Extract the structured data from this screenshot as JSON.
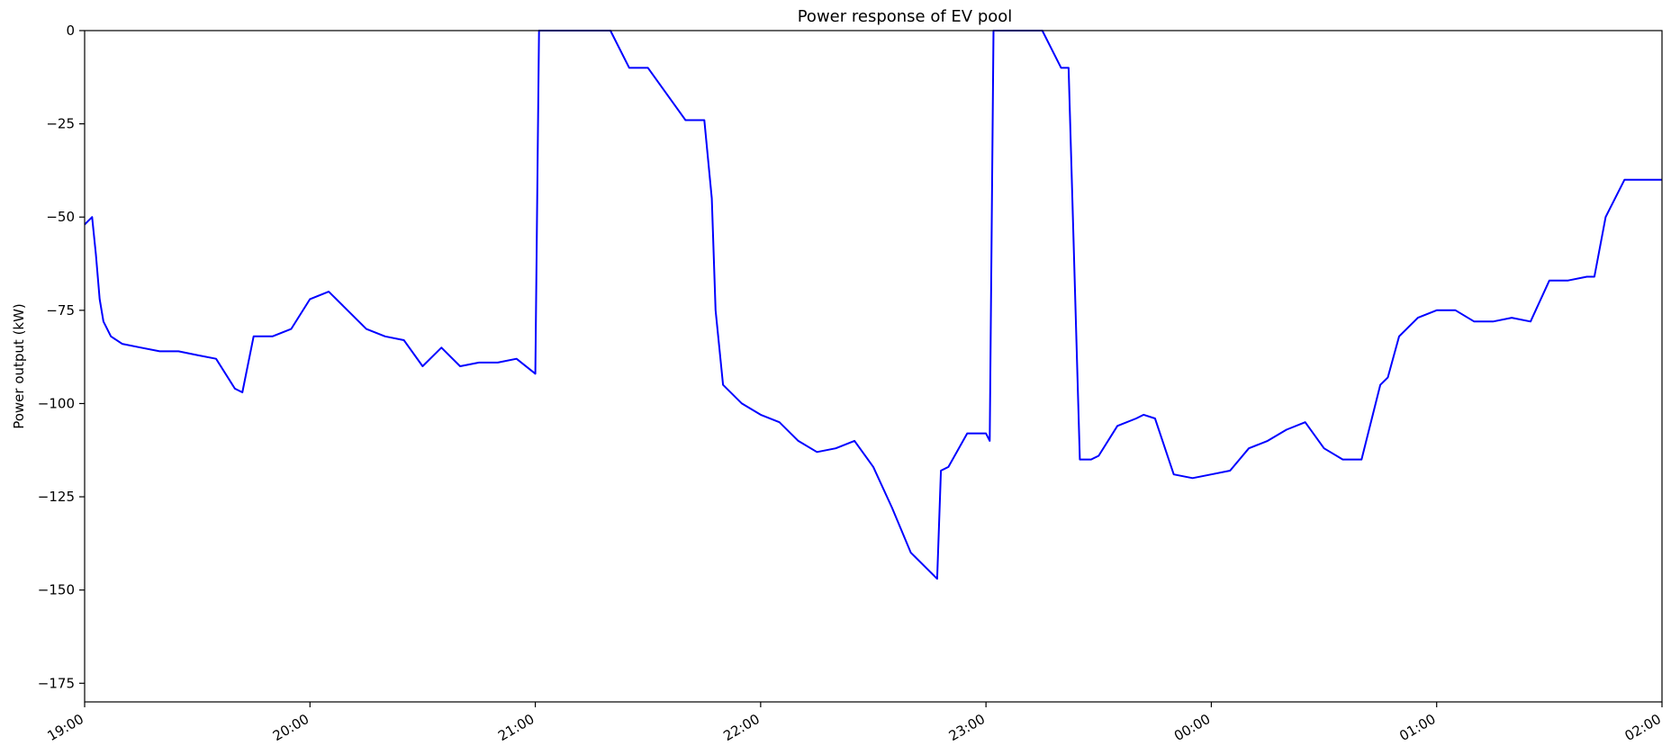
{
  "chart_data": {
    "type": "line",
    "title": "Power response of EV pool",
    "xlabel": "",
    "ylabel": "Power output (kW)",
    "line_color": "#0000ff",
    "grid": false,
    "xlim": [
      "19:00",
      "02:00"
    ],
    "ylim": [
      -180,
      0
    ],
    "x_ticks": [
      "19:00",
      "20:00",
      "21:00",
      "22:00",
      "23:00",
      "00:00",
      "01:00",
      "02:00"
    ],
    "y_ticks": [
      0,
      -25,
      -50,
      -75,
      -100,
      -125,
      -150,
      -175
    ],
    "series": [
      {
        "x": [
          "19:00",
          "19:02",
          "19:03",
          "19:04",
          "19:05",
          "19:07",
          "19:10",
          "19:15",
          "19:20",
          "19:25",
          "19:30",
          "19:35",
          "19:40",
          "19:42",
          "19:45",
          "19:50",
          "19:55",
          "20:00",
          "20:05",
          "20:10",
          "20:15",
          "20:20",
          "20:25",
          "20:30",
          "20:35",
          "20:40",
          "20:45",
          "20:50",
          "20:55",
          "21:00",
          "21:01",
          "21:02",
          "21:10",
          "21:20",
          "21:25",
          "21:30",
          "21:40",
          "21:45",
          "21:47",
          "21:48",
          "21:50",
          "21:55",
          "22:00",
          "22:05",
          "22:10",
          "22:15",
          "22:20",
          "22:25",
          "22:30",
          "22:35",
          "22:40",
          "22:45",
          "22:47",
          "22:48",
          "22:50",
          "22:55",
          "23:00",
          "23:01",
          "23:02",
          "23:10",
          "23:15",
          "23:20",
          "23:22",
          "23:25",
          "23:28",
          "23:30",
          "23:35",
          "23:40",
          "23:42",
          "23:45",
          "23:50",
          "23:55",
          "00:00",
          "00:05",
          "00:10",
          "00:15",
          "00:20",
          "00:25",
          "00:30",
          "00:35",
          "00:40",
          "00:45",
          "00:47",
          "00:50",
          "00:55",
          "01:00",
          "01:05",
          "01:10",
          "01:15",
          "01:20",
          "01:25",
          "01:30",
          "01:35",
          "01:40",
          "01:42",
          "01:45",
          "01:50",
          "01:55",
          "02:00"
        ],
        "y": [
          -52,
          -50,
          -60,
          -72,
          -78,
          -82,
          -84,
          -85,
          -86,
          -86,
          -87,
          -88,
          -96,
          -97,
          -82,
          -82,
          -80,
          -72,
          -70,
          -75,
          -80,
          -82,
          -83,
          -90,
          -85,
          -90,
          -89,
          -89,
          -88,
          -92,
          0,
          0,
          0,
          0,
          -10,
          -10,
          -24,
          -24,
          -45,
          -75,
          -95,
          -100,
          -103,
          -105,
          -110,
          -113,
          -112,
          -110,
          -117,
          -128,
          -140,
          -145,
          -147,
          -118,
          -117,
          -108,
          -108,
          -110,
          0,
          0,
          0,
          -10,
          -10,
          -115,
          -115,
          -114,
          -106,
          -104,
          -103,
          -104,
          -119,
          -120,
          -119,
          -118,
          -112,
          -110,
          -107,
          -105,
          -112,
          -115,
          -115,
          -95,
          -93,
          -82,
          -77,
          -75,
          -75,
          -78,
          -78,
          -77,
          -78,
          -67,
          -67,
          -66,
          -66,
          -50,
          -40,
          -40,
          -40
        ]
      }
    ]
  }
}
